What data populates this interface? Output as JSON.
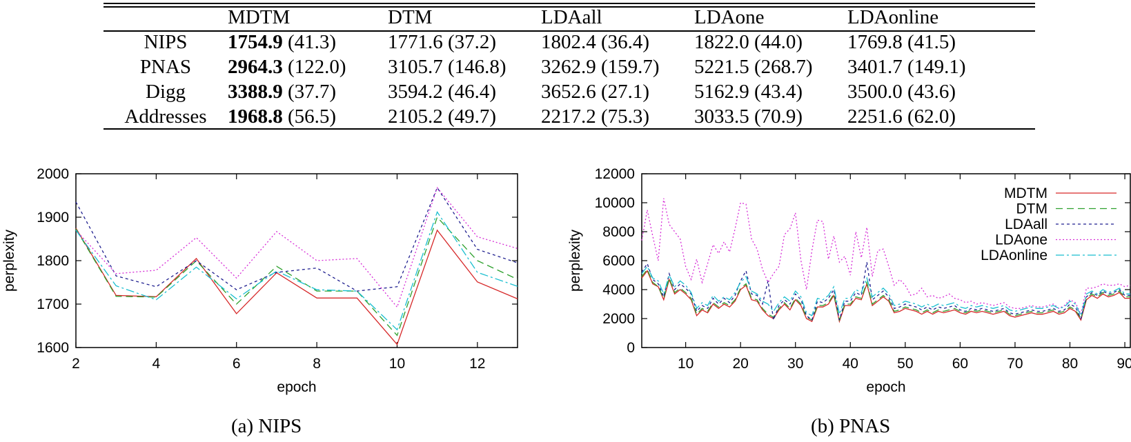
{
  "table": {
    "columns": [
      "MDTM",
      "DTM",
      "LDAall",
      "LDAone",
      "LDAonline"
    ],
    "rows": [
      {
        "dataset": "NIPS",
        "cells": [
          {
            "value": "1754.9",
            "sd": "(41.3)",
            "bold": true
          },
          {
            "value": "1771.6",
            "sd": "(37.2)",
            "bold": false
          },
          {
            "value": "1802.4",
            "sd": "(36.4)",
            "bold": false
          },
          {
            "value": "1822.0",
            "sd": "(44.0)",
            "bold": false
          },
          {
            "value": "1769.8",
            "sd": "(41.5)",
            "bold": false
          }
        ]
      },
      {
        "dataset": "PNAS",
        "cells": [
          {
            "value": "2964.3",
            "sd": "(122.0)",
            "bold": true
          },
          {
            "value": "3105.7",
            "sd": "(146.8)",
            "bold": false
          },
          {
            "value": "3262.9",
            "sd": "(159.7)",
            "bold": false
          },
          {
            "value": "5221.5",
            "sd": "(268.7)",
            "bold": false
          },
          {
            "value": "3401.7",
            "sd": "(149.1)",
            "bold": false
          }
        ]
      },
      {
        "dataset": "Digg",
        "cells": [
          {
            "value": "3388.9",
            "sd": "(37.7)",
            "bold": true
          },
          {
            "value": "3594.2",
            "sd": "(46.4)",
            "bold": false
          },
          {
            "value": "3652.6",
            "sd": "(27.1)",
            "bold": false
          },
          {
            "value": "5162.9",
            "sd": "(43.4)",
            "bold": false
          },
          {
            "value": "3500.0",
            "sd": "(43.6)",
            "bold": false
          }
        ]
      },
      {
        "dataset": "Addresses",
        "cells": [
          {
            "value": "1968.8",
            "sd": "(56.5)",
            "bold": true
          },
          {
            "value": "2105.2",
            "sd": "(49.7)",
            "bold": false
          },
          {
            "value": "2217.2",
            "sd": "(75.3)",
            "bold": false
          },
          {
            "value": "3033.5",
            "sd": "(70.9)",
            "bold": false
          },
          {
            "value": "2251.6",
            "sd": "(62.0)",
            "bold": false
          }
        ]
      }
    ]
  },
  "series_colors": {
    "MDTM": "#d62728",
    "DTM": "#2ca02c",
    "LDAall": "#1f1f8f",
    "LDAone": "#d62ad6",
    "LDAonline": "#17becf"
  },
  "chart_data": [
    {
      "type": "line",
      "caption": "(a) NIPS",
      "xlabel": "epoch",
      "ylabel": "perplexity",
      "xlim": [
        2,
        13
      ],
      "ylim": [
        1600,
        2000
      ],
      "xticks": [
        2,
        4,
        6,
        8,
        10,
        12
      ],
      "yticks": [
        1600,
        1700,
        1800,
        1900,
        2000
      ],
      "legend": false,
      "x": [
        2,
        3,
        4,
        5,
        6,
        7,
        8,
        9,
        10,
        11,
        12,
        13
      ],
      "series": [
        {
          "name": "MDTM",
          "values": [
            1875,
            1720,
            1717,
            1805,
            1678,
            1772,
            1714,
            1714,
            1607,
            1870,
            1751,
            1712
          ]
        },
        {
          "name": "DTM",
          "values": [
            1873,
            1718,
            1716,
            1800,
            1700,
            1787,
            1730,
            1730,
            1628,
            1900,
            1800,
            1757
          ]
        },
        {
          "name": "LDAall",
          "values": [
            1935,
            1765,
            1740,
            1800,
            1733,
            1773,
            1783,
            1730,
            1740,
            1968,
            1826,
            1795
          ]
        },
        {
          "name": "LDAone",
          "values": [
            1870,
            1770,
            1778,
            1853,
            1760,
            1867,
            1800,
            1805,
            1693,
            1968,
            1855,
            1828
          ]
        },
        {
          "name": "LDAonline",
          "values": [
            1870,
            1742,
            1710,
            1785,
            1712,
            1776,
            1733,
            1730,
            1641,
            1912,
            1773,
            1741
          ]
        }
      ]
    },
    {
      "type": "line",
      "caption": "(b) PNAS",
      "xlabel": "epoch",
      "ylabel": "perplexity",
      "xlim": [
        2,
        91
      ],
      "ylim": [
        0,
        12000
      ],
      "xticks": [
        10,
        20,
        30,
        40,
        50,
        60,
        70,
        80,
        90
      ],
      "yticks": [
        0,
        2000,
        4000,
        6000,
        8000,
        10000,
        12000
      ],
      "legend": true,
      "legend_position": "top-right",
      "x": [
        2,
        3,
        4,
        5,
        6,
        7,
        8,
        9,
        10,
        11,
        12,
        13,
        14,
        15,
        16,
        17,
        18,
        19,
        20,
        21,
        22,
        23,
        24,
        25,
        26,
        27,
        28,
        29,
        30,
        31,
        32,
        33,
        34,
        35,
        36,
        37,
        38,
        39,
        40,
        41,
        42,
        43,
        44,
        45,
        46,
        47,
        48,
        49,
        50,
        51,
        52,
        53,
        54,
        55,
        56,
        57,
        58,
        59,
        60,
        61,
        62,
        63,
        64,
        65,
        66,
        67,
        68,
        69,
        70,
        71,
        72,
        73,
        74,
        75,
        76,
        77,
        78,
        79,
        80,
        81,
        82,
        83,
        84,
        85,
        86,
        87,
        88,
        89,
        90,
        91
      ],
      "series": [
        {
          "name": "MDTM",
          "values": [
            4800,
            5300,
            4400,
            4200,
            3300,
            4700,
            3700,
            4000,
            3700,
            3300,
            2200,
            2600,
            2400,
            3000,
            2700,
            3000,
            2800,
            3200,
            4000,
            4300,
            3300,
            3200,
            2600,
            2200,
            2000,
            2600,
            3000,
            2600,
            3300,
            2900,
            2000,
            1800,
            2800,
            2800,
            3000,
            3600,
            1800,
            2900,
            2900,
            3400,
            3300,
            4400,
            2900,
            3200,
            3500,
            3200,
            2400,
            2500,
            2700,
            2600,
            2500,
            2300,
            2500,
            2300,
            2500,
            2400,
            2500,
            2600,
            2400,
            2300,
            2500,
            2400,
            2500,
            2400,
            2300,
            2400,
            2500,
            2200,
            2100,
            2200,
            2300,
            2400,
            2300,
            2300,
            2400,
            2500,
            2300,
            2400,
            2700,
            2500,
            1900,
            3300,
            3600,
            3400,
            3700,
            3500,
            3600,
            3800,
            3400,
            3400
          ]
        },
        {
          "name": "DTM",
          "values": [
            4900,
            5400,
            4500,
            4200,
            3400,
            4800,
            3800,
            4100,
            3800,
            3400,
            2300,
            2700,
            2500,
            3100,
            2800,
            3100,
            2900,
            3300,
            4100,
            4400,
            3400,
            3300,
            2700,
            2300,
            2100,
            2700,
            3100,
            2700,
            3400,
            3000,
            2100,
            1900,
            2900,
            2900,
            3100,
            3700,
            1900,
            3000,
            3000,
            3500,
            3400,
            4500,
            3000,
            3300,
            3600,
            3300,
            2500,
            2600,
            2800,
            2700,
            2600,
            2400,
            2600,
            2400,
            2600,
            2500,
            2600,
            2700,
            2500,
            2400,
            2600,
            2500,
            2600,
            2500,
            2400,
            2500,
            2600,
            2300,
            2200,
            2300,
            2400,
            2500,
            2400,
            2400,
            2500,
            2600,
            2400,
            2500,
            2800,
            2600,
            2000,
            3400,
            3700,
            3500,
            3800,
            3600,
            3700,
            3900,
            3500,
            3500
          ]
        },
        {
          "name": "LDAall",
          "values": [
            5200,
            5800,
            4700,
            4400,
            3500,
            5100,
            4000,
            4400,
            4100,
            3700,
            2500,
            2900,
            2700,
            3400,
            3000,
            3400,
            3100,
            3600,
            4600,
            5300,
            3700,
            3600,
            3000,
            4600,
            1900,
            2900,
            3300,
            3000,
            3700,
            3300,
            2200,
            1900,
            3200,
            3100,
            3400,
            4000,
            1900,
            3200,
            3200,
            3800,
            3600,
            5900,
            3300,
            3600,
            3900,
            3500,
            2700,
            2800,
            3000,
            2900,
            2800,
            2600,
            2800,
            2600,
            2800,
            2700,
            2800,
            2900,
            2600,
            2500,
            2700,
            2600,
            2700,
            2600,
            2500,
            2600,
            2700,
            2400,
            2300,
            2400,
            2500,
            2600,
            2500,
            2500,
            2600,
            2700,
            2500,
            2600,
            3000,
            2800,
            2000,
            3500,
            3800,
            3600,
            3900,
            3700,
            3800,
            4000,
            3600,
            3600
          ]
        },
        {
          "name": "LDAone",
          "values": [
            7400,
            9500,
            7700,
            6000,
            10300,
            8500,
            8000,
            7500,
            5600,
            4700,
            6100,
            4500,
            5800,
            7100,
            6500,
            7300,
            6600,
            8200,
            10000,
            9900,
            7500,
            6800,
            5400,
            4500,
            5100,
            5600,
            7800,
            8200,
            9300,
            6000,
            4000,
            6700,
            8800,
            8700,
            6100,
            7700,
            5900,
            6300,
            5000,
            8000,
            6200,
            8300,
            4900,
            6700,
            6800,
            5600,
            4300,
            4700,
            4300,
            3600,
            3700,
            4100,
            3500,
            3600,
            3400,
            3500,
            3700,
            3400,
            3300,
            3100,
            3200,
            3000,
            3100,
            3000,
            2900,
            3000,
            3100,
            2800,
            2700,
            2700,
            2800,
            2900,
            2800,
            2800,
            2900,
            3000,
            2700,
            2900,
            3300,
            3100,
            2300,
            4100,
            4100,
            4200,
            4400,
            4300,
            4300,
            4400,
            4200,
            4300
          ]
        },
        {
          "name": "LDAonline",
          "values": [
            5100,
            5600,
            4800,
            4600,
            3700,
            5000,
            4200,
            4600,
            4300,
            3800,
            2700,
            3100,
            2900,
            3600,
            3200,
            3500,
            3300,
            3800,
            4500,
            4900,
            3900,
            3700,
            3200,
            3000,
            2500,
            3100,
            3500,
            3200,
            3900,
            3500,
            2400,
            2200,
            3400,
            3300,
            3600,
            4200,
            2300,
            3400,
            3400,
            4000,
            3800,
            4800,
            3500,
            3800,
            4100,
            3700,
            2900,
            3000,
            3200,
            3100,
            3000,
            2800,
            3000,
            2800,
            3000,
            2900,
            3000,
            3100,
            2800,
            2700,
            2900,
            2800,
            2900,
            2800,
            2700,
            2800,
            2900,
            2600,
            2500,
            2600,
            2700,
            2800,
            2700,
            2700,
            2800,
            2900,
            2700,
            2800,
            3200,
            3000,
            2200,
            3700,
            3900,
            3700,
            4000,
            3800,
            3900,
            4100,
            3700,
            3700
          ]
        }
      ]
    }
  ]
}
